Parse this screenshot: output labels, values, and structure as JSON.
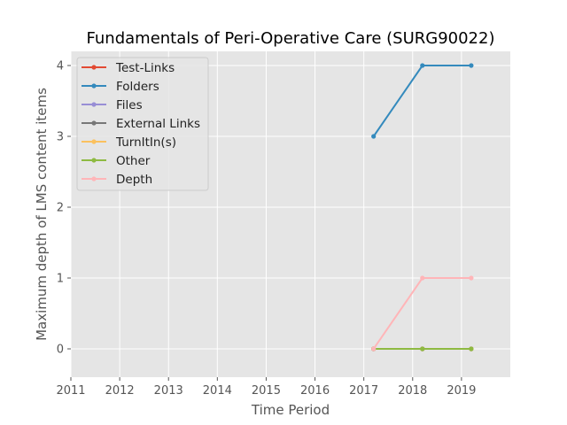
{
  "chart_data": {
    "type": "line",
    "title": "Fundamentals of Peri-Operative Care (SURG90022)",
    "xlabel": "Time Period",
    "ylabel": "Maximum depth of LMS content items",
    "xlim": [
      2011,
      2020
    ],
    "ylim": [
      -0.4,
      4.2
    ],
    "x_ticks": [
      "2011",
      "2012",
      "2013",
      "2014",
      "2015",
      "2016",
      "2017",
      "2018",
      "2019"
    ],
    "y_ticks": [
      "0",
      "1",
      "2",
      "3",
      "4"
    ],
    "x": [
      2017.2,
      2018.2,
      2019.2
    ],
    "grid": true,
    "legend_position": "top-left",
    "series": [
      {
        "name": "Test-Links",
        "color": "#E24A33",
        "values": [
          0,
          0,
          0
        ]
      },
      {
        "name": "Folders",
        "color": "#348ABD",
        "values": [
          3,
          4,
          4
        ]
      },
      {
        "name": "Files",
        "color": "#988ED5",
        "values": [
          0,
          0,
          0
        ]
      },
      {
        "name": "External Links",
        "color": "#777777",
        "values": [
          0,
          0,
          0
        ]
      },
      {
        "name": "TurnItIn(s)",
        "color": "#FBC15E",
        "values": [
          0,
          0,
          0
        ]
      },
      {
        "name": "Other",
        "color": "#8EBA42",
        "values": [
          0,
          0,
          0
        ]
      },
      {
        "name": "Depth",
        "color": "#FFB5B8",
        "values": [
          0,
          1,
          1
        ]
      }
    ]
  }
}
